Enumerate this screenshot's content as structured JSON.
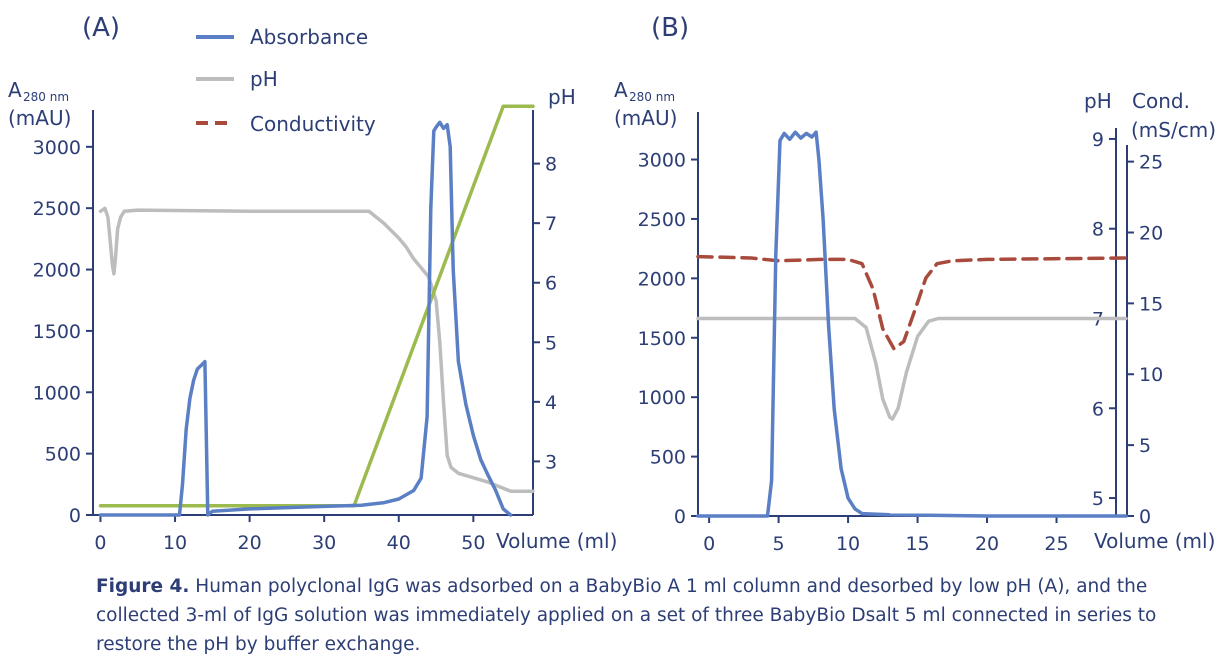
{
  "legend": [
    {
      "name": "Absorbance",
      "color": "#5b7fc4",
      "dash": false
    },
    {
      "name": "pH",
      "color": "#bdbdbd",
      "dash": false
    },
    {
      "name": "Conductivity",
      "color": "#a84a3c",
      "dash": true
    }
  ],
  "colors": {
    "absorbance": "#5b7fc4",
    "ph": "#bdbdbd",
    "conductivity": "#a84a3c",
    "gradient": "#9cbb4f",
    "axis": "#2c3e75"
  },
  "caption": {
    "label": "Figure 4.",
    "text": " Human polyclonal IgG was adsorbed on a BabyBio A 1 ml column and desorbed by low pH (A), and the collected 3-ml of IgG solution was immediately applied on a set of three BabyBio Dsalt 5 ml connected in series to restore the pH by buffer exchange."
  },
  "chart_data": [
    {
      "type": "line",
      "panel_label": "(A)",
      "xlabel": "Volume (ml)",
      "xlim": [
        -1,
        58
      ],
      "x_ticks": [
        0,
        10,
        20,
        30,
        40,
        50
      ],
      "y_left": {
        "title_main": "A",
        "title_sub": "280 nm",
        "title_unit": "(mAU)",
        "lim": [
          0,
          3300
        ],
        "ticks": [
          0,
          500,
          1000,
          1500,
          2000,
          2500,
          3000
        ]
      },
      "y_right": {
        "title": "pH",
        "lim": [
          2.1,
          8.9
        ],
        "ticks": [
          3,
          4,
          5,
          6,
          7,
          8
        ]
      },
      "series": [
        {
          "name": "Absorbance",
          "axis": "left",
          "x": [
            0,
            10.6,
            11.0,
            11.5,
            12,
            12.5,
            13,
            13.7,
            14.0,
            14.4,
            15,
            20,
            30,
            35,
            38,
            40,
            42,
            43,
            43.8,
            44.3,
            44.7,
            45,
            45.5,
            46,
            46.5,
            46.9,
            47.3,
            48,
            49,
            50,
            51,
            52,
            53,
            54,
            55
          ],
          "y": [
            0,
            0,
            250,
            700,
            950,
            1100,
            1190,
            1230,
            1250,
            0,
            30,
            50,
            70,
            80,
            100,
            130,
            200,
            300,
            800,
            2500,
            3130,
            3160,
            3200,
            3150,
            3180,
            3000,
            2000,
            1250,
            900,
            650,
            450,
            320,
            200,
            50,
            0
          ]
        },
        {
          "name": "pH",
          "axis": "right",
          "x": [
            0,
            0.6,
            1.0,
            1.3,
            1.6,
            1.8,
            2.0,
            2.3,
            2.7,
            3.2,
            5,
            20,
            36,
            38,
            40,
            41,
            42,
            43,
            44,
            45,
            45.5,
            46,
            46.5,
            47,
            48,
            52,
            55,
            58
          ],
          "y": [
            7.2,
            7.25,
            7.1,
            6.7,
            6.3,
            6.15,
            6.4,
            6.9,
            7.1,
            7.2,
            7.22,
            7.2,
            7.2,
            7.0,
            6.75,
            6.6,
            6.4,
            6.25,
            6.1,
            5.7,
            5.0,
            4.0,
            3.1,
            2.9,
            2.8,
            2.65,
            2.5,
            2.5
          ]
        },
        {
          "name": "Gradient",
          "axis": "left",
          "x": [
            0,
            34,
            54,
            58
          ],
          "y": [
            75,
            75,
            3330,
            3330
          ]
        }
      ]
    },
    {
      "type": "line",
      "panel_label": "(B)",
      "xlabel": "Volume (ml)",
      "xlim": [
        -0.8,
        30
      ],
      "x_ticks": [
        0,
        5,
        10,
        15,
        20,
        25
      ],
      "y_left": {
        "title_main": "A",
        "title_sub": "280 nm",
        "title_unit": "(mAU)",
        "lim": [
          0,
          3400
        ],
        "ticks": [
          0,
          500,
          1000,
          1500,
          2000,
          2500,
          3000
        ]
      },
      "y_right_ph": {
        "title": "pH",
        "lim": [
          4.8,
          9.3
        ],
        "ticks": [
          5,
          6,
          7,
          8,
          9
        ]
      },
      "y_right_cond": {
        "title_main": "Cond.",
        "title_unit": "(mS/cm)",
        "lim": [
          0,
          28.5
        ],
        "ticks": [
          0,
          5,
          10,
          15,
          20,
          25
        ]
      },
      "series": [
        {
          "name": "Absorbance",
          "axis": "left",
          "x": [
            -0.8,
            4.2,
            4.5,
            4.8,
            5.1,
            5.4,
            5.8,
            6.2,
            6.6,
            7.0,
            7.4,
            7.7,
            7.9,
            8.2,
            8.6,
            9.0,
            9.5,
            10.0,
            10.5,
            11,
            13,
            20,
            25,
            30
          ],
          "y": [
            0,
            0,
            300,
            2200,
            3160,
            3220,
            3170,
            3230,
            3180,
            3220,
            3190,
            3230,
            3000,
            2500,
            1600,
            900,
            400,
            150,
            60,
            20,
            10,
            0,
            0,
            0
          ]
        },
        {
          "name": "pH",
          "axis": "right_ph",
          "x": [
            -0.8,
            10.5,
            11.3,
            12.0,
            12.5,
            13.0,
            13.2,
            13.6,
            14.2,
            15.0,
            15.8,
            16.5,
            30
          ],
          "y": [
            7.0,
            7.0,
            6.9,
            6.5,
            6.1,
            5.9,
            5.88,
            6.0,
            6.4,
            6.8,
            6.97,
            7.0,
            7.0
          ]
        },
        {
          "name": "Conductivity",
          "axis": "right_cond",
          "dash": true,
          "x": [
            -0.8,
            3,
            5,
            8,
            10,
            11,
            11.8,
            12.5,
            13.3,
            14.0,
            14.8,
            15.6,
            16.4,
            17.5,
            20,
            30
          ],
          "y": [
            18.3,
            18.2,
            18.0,
            18.1,
            18.1,
            17.8,
            16.0,
            13.2,
            11.8,
            12.3,
            14.5,
            16.8,
            17.8,
            18.0,
            18.1,
            18.2
          ]
        }
      ]
    }
  ]
}
